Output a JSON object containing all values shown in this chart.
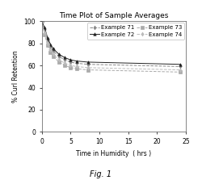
{
  "title": "Time Plot of Sample Averages",
  "xlabel": "Time in Humidity  ( hrs )",
  "ylabel": "% Curl Retention",
  "fig_label": "Fig. 1",
  "xlim": [
    0,
    25
  ],
  "ylim": [
    0,
    100
  ],
  "xticks": [
    0,
    5,
    10,
    15,
    20,
    25
  ],
  "yticks": [
    0,
    20,
    40,
    60,
    80,
    100
  ],
  "series": [
    {
      "label": "Example 71",
      "color": "#888888",
      "linestyle": "--",
      "marker": "d",
      "markersize": 2.5,
      "markerfacecolor": "#888888",
      "x": [
        0,
        0.5,
        1,
        1.5,
        2,
        3,
        4,
        5,
        6,
        8,
        24
      ],
      "y": [
        100,
        92,
        83,
        77,
        73,
        68,
        65,
        63,
        62,
        61,
        59
      ]
    },
    {
      "label": "Example 72",
      "color": "#222222",
      "linestyle": "-",
      "marker": "^",
      "markersize": 2.5,
      "markerfacecolor": "#222222",
      "x": [
        0,
        0.5,
        1,
        1.5,
        2,
        3,
        4,
        5,
        6,
        8,
        24
      ],
      "y": [
        100,
        94,
        85,
        79,
        75,
        70,
        67,
        65,
        64,
        63,
        61
      ]
    },
    {
      "label": "Example 73",
      "color": "#aaaaaa",
      "linestyle": "--",
      "marker": "s",
      "markersize": 2.5,
      "markerfacecolor": "#aaaaaa",
      "x": [
        0,
        0.5,
        1,
        1.5,
        2,
        3,
        4,
        5,
        6,
        8,
        24
      ],
      "y": [
        100,
        88,
        78,
        72,
        68,
        63,
        60,
        58,
        57,
        56,
        54
      ]
    },
    {
      "label": "Example 74",
      "color": "#bbbbbb",
      "linestyle": "--",
      "marker": "d",
      "markersize": 2.5,
      "markerfacecolor": "#bbbbbb",
      "x": [
        0,
        0.5,
        1,
        1.5,
        2,
        3,
        4,
        5,
        6,
        8,
        24
      ],
      "y": [
        100,
        90,
        80,
        74,
        70,
        65,
        62,
        60,
        59,
        58,
        56
      ]
    }
  ],
  "background_color": "#ffffff",
  "title_fontsize": 6.5,
  "label_fontsize": 5.5,
  "tick_fontsize": 5.5,
  "legend_fontsize": 5.0
}
